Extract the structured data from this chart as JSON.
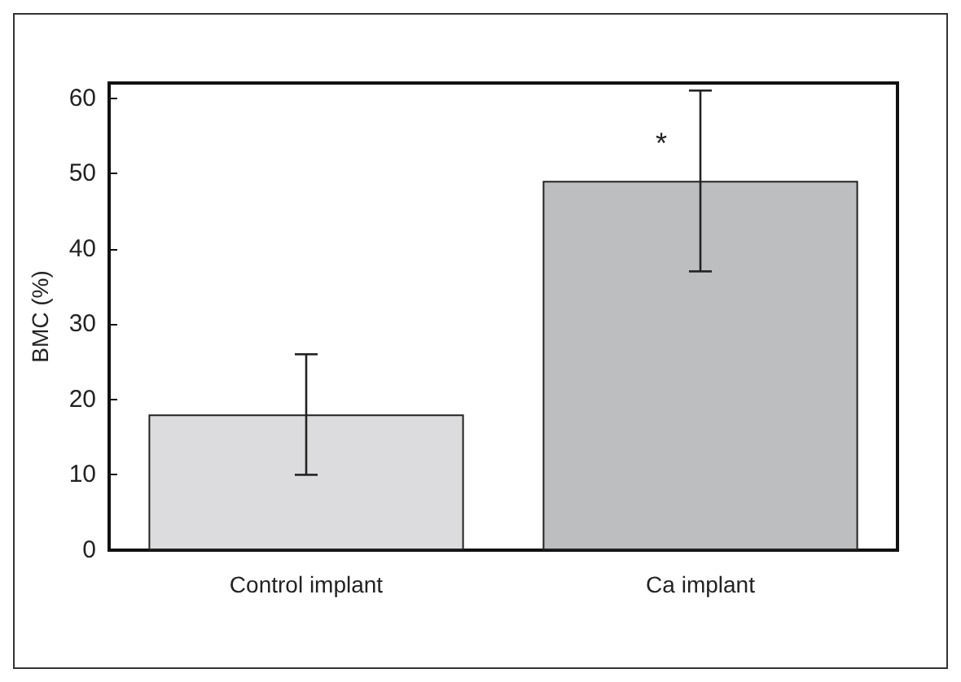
{
  "chart_data": {
    "type": "bar",
    "ylabel": "BMC (%)",
    "categories": [
      "Control implant",
      "Ca implant"
    ],
    "values": [
      18,
      49
    ],
    "colors": [
      "#dcdcde",
      "#bdbec0"
    ],
    "errors": [
      [
        10,
        26
      ],
      [
        37,
        61
      ]
    ],
    "ylim": [
      0,
      62
    ],
    "yticks": [
      0,
      10,
      20,
      30,
      40,
      50,
      60
    ],
    "grid": false,
    "annotations": [
      {
        "text": "*",
        "x": "Ca implant",
        "y": 54
      }
    ]
  }
}
